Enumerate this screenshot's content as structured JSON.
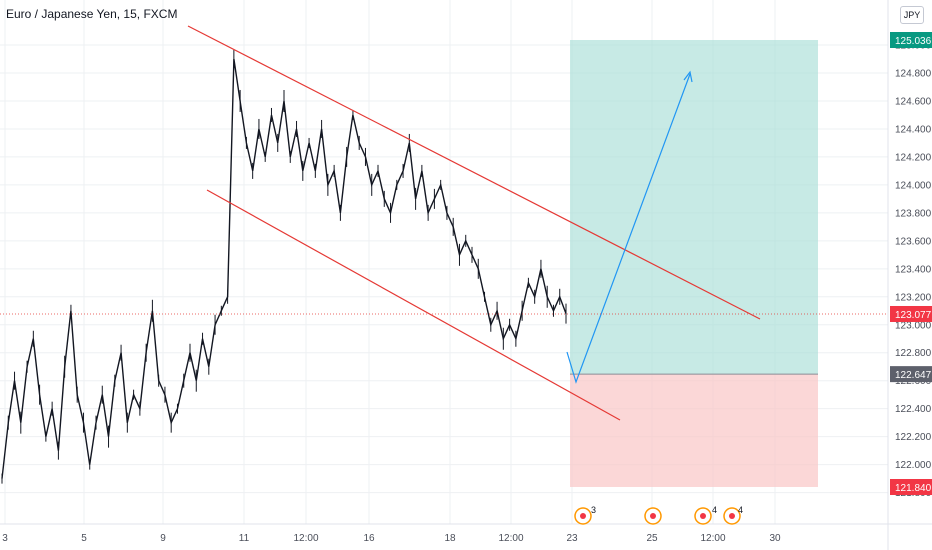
{
  "header": {
    "title": "Euro / Japanese Yen, 15, FXCM",
    "currency_button": "JPY"
  },
  "colors": {
    "channel": "#e53935",
    "projection": "#2196f3",
    "target_zone": "#a9dfd7",
    "stop_zone": "#f9c6c6",
    "price_line": "#e53935",
    "target_label": "#089981",
    "stop_label": "#f23645",
    "entry_label": "#5d606b",
    "candles": "#131722"
  },
  "chart_data": {
    "type": "line",
    "series": [
      {
        "values": [
          121.9,
          122.3,
          122.6,
          122.3,
          122.7,
          122.9,
          122.5,
          122.2,
          122.4,
          122.1,
          122.7,
          123.1,
          122.5,
          122.3,
          122.0,
          122.3,
          122.5,
          122.2,
          122.6,
          122.8,
          122.3,
          122.5,
          122.4,
          122.8,
          123.1,
          122.6,
          122.5,
          122.3,
          122.4,
          122.6,
          122.8,
          122.6,
          122.9,
          122.7,
          123.0,
          123.1,
          123.2,
          124.9,
          124.6,
          124.3,
          124.1,
          124.4,
          124.2,
          124.5,
          124.3,
          124.6,
          124.2,
          124.4,
          124.1,
          124.3,
          124.1,
          124.4,
          124.0,
          124.1,
          123.8,
          124.2,
          124.5,
          124.3,
          124.2,
          124.0,
          124.1,
          123.9,
          123.8,
          124.0,
          124.1,
          124.3,
          123.9,
          124.1,
          123.8,
          123.9,
          124.0,
          123.8,
          123.7,
          123.5,
          123.6,
          123.5,
          123.4,
          123.2,
          123.0,
          123.1,
          122.9,
          123.0,
          122.9,
          123.1,
          123.3,
          123.2,
          123.4,
          123.2,
          123.1,
          123.2,
          123.08
        ],
        "index_range": [
          0,
          90
        ]
      }
    ],
    "price_axis": {
      "min": 121.8,
      "max": 125.1,
      "ticks": [
        "125.000",
        "124.800",
        "124.600",
        "124.400",
        "124.200",
        "124.000",
        "123.800",
        "123.600",
        "123.400",
        "123.200",
        "123.000",
        "122.800",
        "122.600",
        "122.400",
        "122.200",
        "122.000",
        "121.800"
      ]
    },
    "time_axis": {
      "ticks": [
        "3",
        "5",
        "9",
        "11",
        "12:00",
        "16",
        "18",
        "12:00",
        "23",
        "25",
        "12:00",
        "30"
      ]
    },
    "current_price": "123.077",
    "position": {
      "target": "125.036",
      "entry": "122.647",
      "stop": "121.840"
    },
    "annotations": {
      "event_badges": [
        "3",
        "4",
        "4"
      ]
    },
    "grid": true
  }
}
